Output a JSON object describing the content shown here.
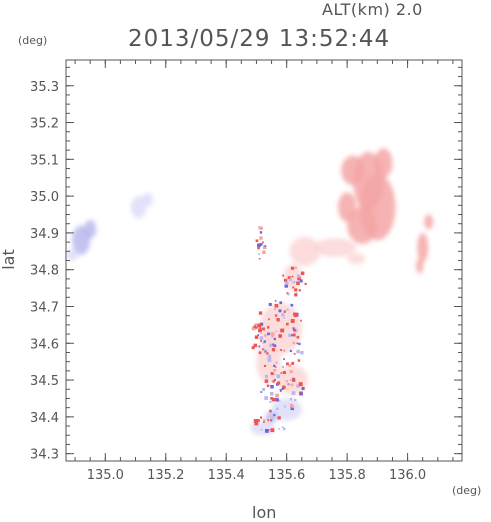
{
  "header": {
    "altitude_label": "ALT(km) 2.0",
    "timestamp": "2013/05/29 13:52:44"
  },
  "chart_data": {
    "type": "heatmap",
    "title": "2013/05/29 13:52:44",
    "xlabel": "lon",
    "ylabel": "lat",
    "x_unit": "(deg)",
    "y_unit": "(deg)",
    "xlim": [
      134.87,
      136.18
    ],
    "ylim": [
      34.28,
      35.37
    ],
    "x_ticks": [
      "135.0",
      "135.2",
      "135.4",
      "135.6",
      "135.8",
      "136.0"
    ],
    "x_tick_values": [
      135.0,
      135.2,
      135.4,
      135.6,
      135.8,
      136.0
    ],
    "y_ticks": [
      "34.3",
      "34.4",
      "34.5",
      "34.6",
      "34.7",
      "34.8",
      "34.9",
      "35.0",
      "35.1",
      "35.2",
      "35.3"
    ],
    "y_tick_values": [
      34.3,
      34.4,
      34.5,
      34.6,
      34.7,
      34.8,
      34.9,
      35.0,
      35.1,
      35.2,
      35.3
    ],
    "colors": {
      "positive": "#f4a6a6",
      "positive_light": "#fbd6d6",
      "positive_strong": "#ee5555",
      "negative": "#b8b8ee",
      "negative_light": "#dcdcf8",
      "negative_strong": "#6666dd",
      "axis": "#555555"
    },
    "regions": [
      {
        "sign": "positive",
        "lon": 135.87,
        "lat": 35.04,
        "rlon": 0.05,
        "rlat": 0.08
      },
      {
        "sign": "positive",
        "lon": 135.9,
        "lat": 34.97,
        "rlon": 0.06,
        "rlat": 0.09
      },
      {
        "sign": "positive",
        "lon": 135.85,
        "lat": 34.92,
        "rlon": 0.05,
        "rlat": 0.05
      },
      {
        "sign": "positive",
        "lon": 135.8,
        "lat": 34.97,
        "rlon": 0.03,
        "rlat": 0.04
      },
      {
        "sign": "positive",
        "lon": 135.82,
        "lat": 35.07,
        "rlon": 0.04,
        "rlat": 0.04
      },
      {
        "sign": "positive",
        "lon": 135.92,
        "lat": 35.09,
        "rlon": 0.03,
        "rlat": 0.04
      },
      {
        "sign": "positive_light",
        "lon": 135.76,
        "lat": 34.86,
        "rlon": 0.07,
        "rlat": 0.025
      },
      {
        "sign": "positive_light",
        "lon": 135.83,
        "lat": 34.83,
        "rlon": 0.03,
        "rlat": 0.015
      },
      {
        "sign": "positive",
        "lon": 136.05,
        "lat": 34.86,
        "rlon": 0.018,
        "rlat": 0.04
      },
      {
        "sign": "positive",
        "lon": 136.07,
        "lat": 34.93,
        "rlon": 0.015,
        "rlat": 0.02
      },
      {
        "sign": "positive",
        "lon": 136.04,
        "lat": 34.81,
        "rlon": 0.012,
        "rlat": 0.02
      },
      {
        "sign": "negative",
        "lon": 134.92,
        "lat": 34.88,
        "rlon": 0.03,
        "rlat": 0.04
      },
      {
        "sign": "negative",
        "lon": 134.95,
        "lat": 34.91,
        "rlon": 0.02,
        "rlat": 0.025
      },
      {
        "sign": "negative_light",
        "lon": 134.89,
        "lat": 34.84,
        "rlon": 0.02,
        "rlat": 0.015
      },
      {
        "sign": "negative_light",
        "lon": 135.11,
        "lat": 34.97,
        "rlon": 0.025,
        "rlat": 0.03
      },
      {
        "sign": "negative_light",
        "lon": 135.14,
        "lat": 34.99,
        "rlon": 0.018,
        "rlat": 0.018
      },
      {
        "sign": "positive_light",
        "lon": 135.66,
        "lat": 34.85,
        "rlon": 0.05,
        "rlat": 0.04
      },
      {
        "sign": "positive_light",
        "lon": 135.62,
        "lat": 34.78,
        "rlon": 0.03,
        "rlat": 0.035
      },
      {
        "sign": "positive_light",
        "lon": 135.58,
        "lat": 34.64,
        "rlon": 0.07,
        "rlat": 0.07
      },
      {
        "sign": "positive_light",
        "lon": 135.54,
        "lat": 34.55,
        "rlon": 0.04,
        "rlat": 0.06
      },
      {
        "sign": "positive_light",
        "lon": 135.62,
        "lat": 34.5,
        "rlon": 0.05,
        "rlat": 0.04
      },
      {
        "sign": "negative_light",
        "lon": 135.6,
        "lat": 34.42,
        "rlon": 0.05,
        "rlat": 0.03
      },
      {
        "sign": "negative_light",
        "lon": 135.52,
        "lat": 34.37,
        "rlon": 0.04,
        "rlat": 0.02
      },
      {
        "sign": "negative",
        "lon": 135.55,
        "lat": 34.4,
        "rlon": 0.02,
        "rlat": 0.015
      }
    ],
    "speckle_areas": [
      {
        "lon": 135.57,
        "lat": 34.62,
        "rlon": 0.09,
        "rlat": 0.1,
        "count": 90
      },
      {
        "lon": 135.58,
        "lat": 34.48,
        "rlon": 0.07,
        "rlat": 0.06,
        "count": 55
      },
      {
        "lon": 135.62,
        "lat": 34.77,
        "rlon": 0.04,
        "rlat": 0.04,
        "count": 25
      },
      {
        "lon": 135.51,
        "lat": 34.88,
        "rlon": 0.02,
        "rlat": 0.05,
        "count": 15
      },
      {
        "lon": 135.55,
        "lat": 34.39,
        "rlon": 0.06,
        "rlat": 0.03,
        "count": 20
      }
    ]
  }
}
